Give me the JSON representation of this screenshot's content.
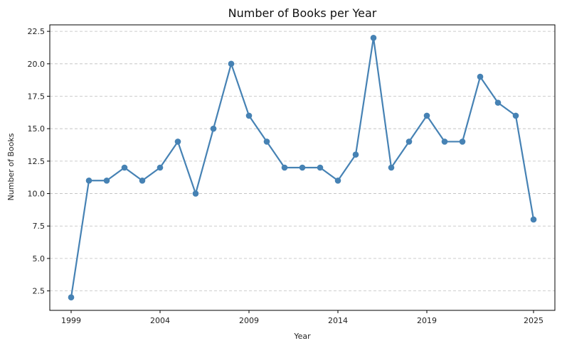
{
  "chart_data": {
    "type": "line",
    "title": "Number of Books per Year",
    "xlabel": "Year",
    "ylabel": "Number of Books",
    "x": [
      1999,
      2000,
      2001,
      2002,
      2003,
      2004,
      2005,
      2006,
      2007,
      2008,
      2009,
      2010,
      2011,
      2012,
      2013,
      2014,
      2015,
      2016,
      2017,
      2018,
      2019,
      2020,
      2021,
      2022,
      2023,
      2024,
      2025
    ],
    "series": [
      {
        "values": [
          2,
          11,
          11,
          12,
          11,
          12,
          14,
          10,
          15,
          20,
          16,
          14,
          12,
          12,
          12,
          11,
          13,
          22,
          12,
          14,
          16,
          14,
          14,
          19,
          17,
          16,
          8
        ],
        "color": "#4682b4"
      }
    ],
    "xticks": [
      1999,
      2004,
      2009,
      2014,
      2019,
      2025
    ],
    "yticks": [
      2.5,
      5.0,
      7.5,
      10.0,
      12.5,
      15.0,
      17.5,
      20.0,
      22.5
    ],
    "ytick_labels": [
      "2.5",
      "5.0",
      "7.5",
      "10.0",
      "12.5",
      "15.0",
      "17.5",
      "20.0",
      "22.5"
    ],
    "xlim": [
      1997.8,
      2026.2
    ],
    "ylim": [
      1.0,
      23.0
    ],
    "grid": "y-dashed",
    "legend": "none"
  }
}
